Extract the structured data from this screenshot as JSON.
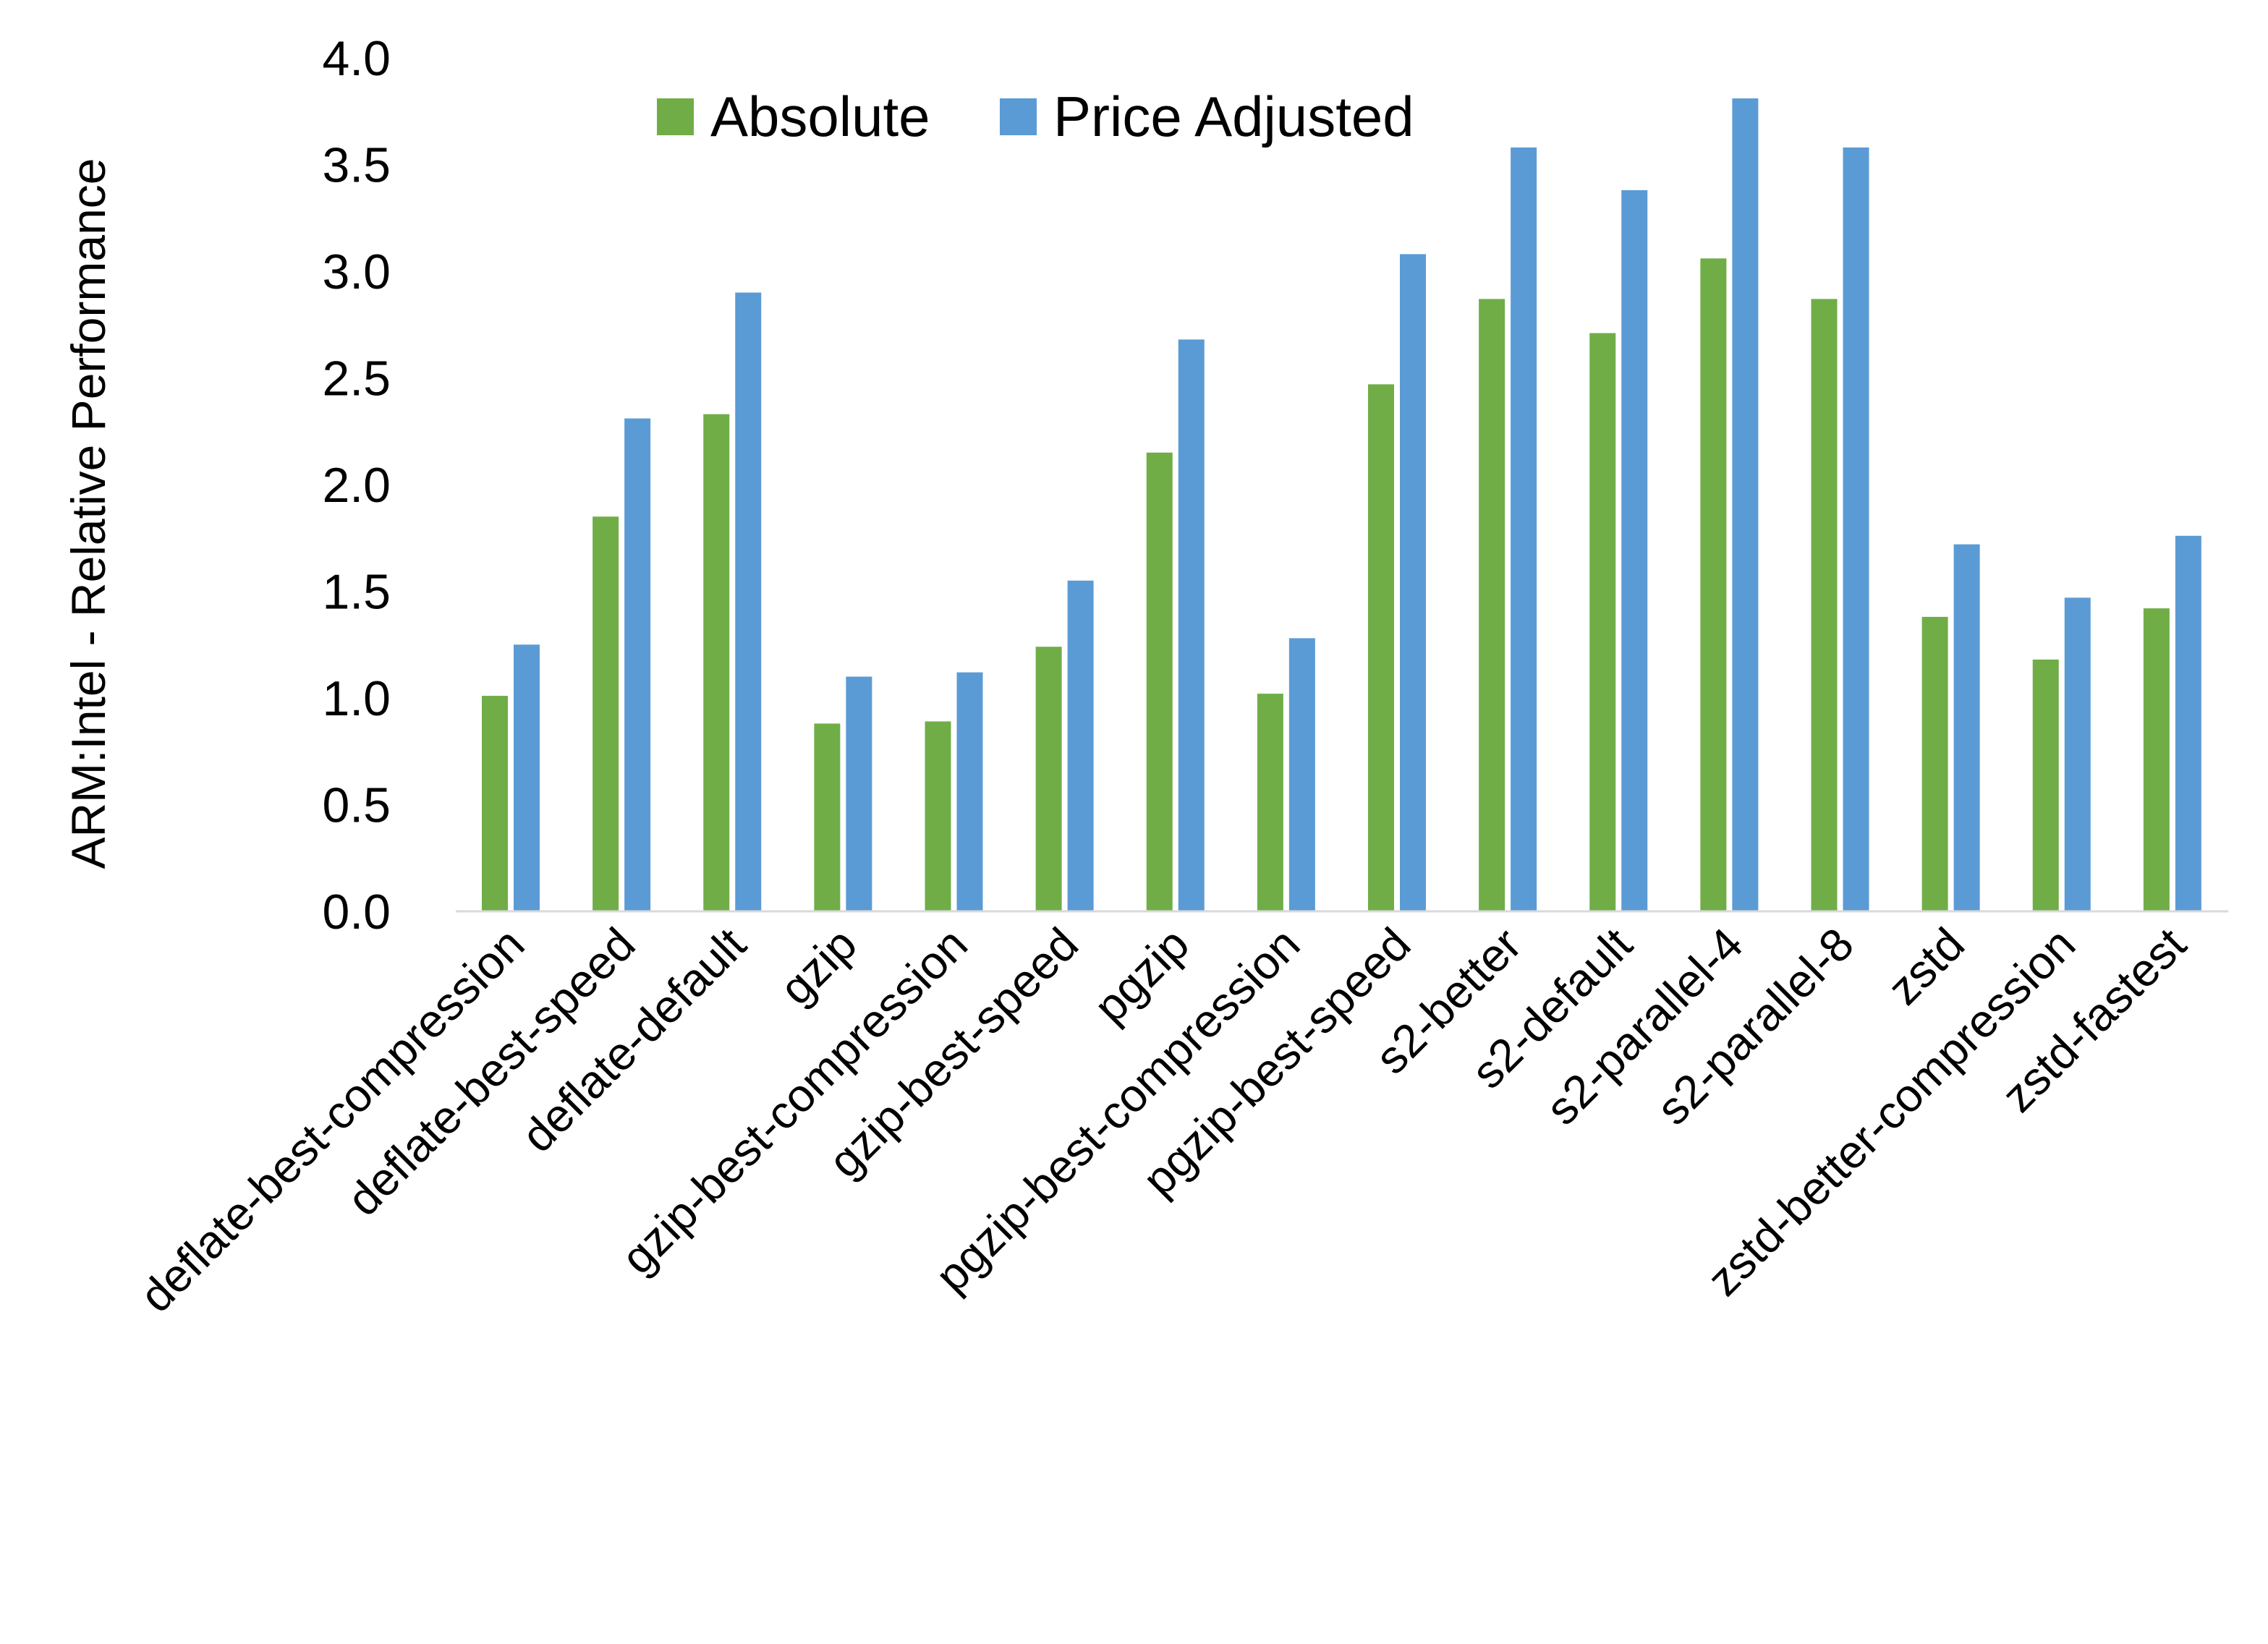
{
  "chart_data": {
    "type": "bar",
    "title": "",
    "xlabel": "",
    "ylabel": "ARM:Intel - Relative Performance",
    "ylim": [
      0,
      4.0
    ],
    "yticks": [
      "0.0",
      "0.5",
      "1.0",
      "1.5",
      "2.0",
      "2.5",
      "3.0",
      "3.5",
      "4.0"
    ],
    "grid": false,
    "legend_placement": "top-center",
    "categories": [
      "deflate-best-compression",
      "deflate-best-speed",
      "deflate-default",
      "gzip",
      "gzip-best-compression",
      "gzip-best-speed",
      "pgzip",
      "pgzip-best-compression",
      "pgzip-best-speed",
      "s2-better",
      "s2-default",
      "s2-parallel-4",
      "s2-parallel-8",
      "zstd",
      "zstd-better-compression",
      "zstd-fastest"
    ],
    "series": [
      {
        "name": "Absolute",
        "color": "#70AD47",
        "values": [
          1.01,
          1.85,
          2.33,
          0.88,
          0.89,
          1.24,
          2.15,
          1.02,
          2.47,
          2.87,
          2.71,
          3.06,
          2.87,
          1.38,
          1.18,
          1.42
        ]
      },
      {
        "name": "Price Adjusted",
        "color": "#5B9BD5",
        "values": [
          1.25,
          2.31,
          2.9,
          1.1,
          1.12,
          1.55,
          2.68,
          1.28,
          3.08,
          3.58,
          3.38,
          3.81,
          3.58,
          1.72,
          1.47,
          1.76
        ]
      }
    ]
  }
}
